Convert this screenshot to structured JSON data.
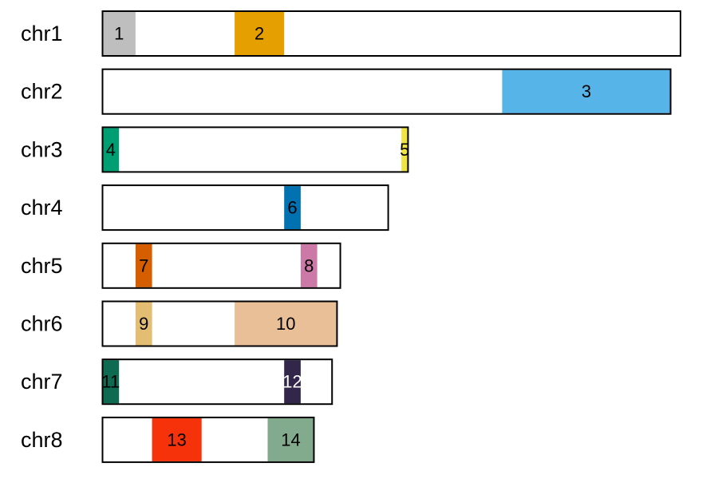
{
  "chart_data": {
    "type": "chromosome_map",
    "chromosomes": [
      {
        "name": "chr1",
        "length": 175
      },
      {
        "name": "chr2",
        "length": 172
      },
      {
        "name": "chr3",
        "length": 92.5
      },
      {
        "name": "chr4",
        "length": 86.5
      },
      {
        "name": "chr5",
        "length": 72
      },
      {
        "name": "chr6",
        "length": 71
      },
      {
        "name": "chr7",
        "length": 69.5
      },
      {
        "name": "chr8",
        "length": 64
      }
    ],
    "regions": [
      {
        "label": "1",
        "chrom": "chr1",
        "start": 0,
        "end": 10,
        "color": "#BEBEBE",
        "text_color": "#000000"
      },
      {
        "label": "2",
        "chrom": "chr1",
        "start": 40,
        "end": 55,
        "color": "#E69F00",
        "text_color": "#000000"
      },
      {
        "label": "3",
        "chrom": "chr2",
        "start": 121,
        "end": 172,
        "color": "#56B4E9",
        "text_color": "#000000"
      },
      {
        "label": "4",
        "chrom": "chr3",
        "start": 0,
        "end": 5,
        "color": "#009E73",
        "text_color": "#000000"
      },
      {
        "label": "5",
        "chrom": "chr3",
        "start": 90.5,
        "end": 92.5,
        "color": "#F0E442",
        "text_color": "#000000"
      },
      {
        "label": "6",
        "chrom": "chr4",
        "start": 55,
        "end": 60,
        "color": "#0072B2",
        "text_color": "#000000"
      },
      {
        "label": "7",
        "chrom": "chr5",
        "start": 10,
        "end": 15,
        "color": "#D55E00",
        "text_color": "#000000"
      },
      {
        "label": "8",
        "chrom": "chr5",
        "start": 60,
        "end": 65,
        "color": "#CC79A7",
        "text_color": "#000000"
      },
      {
        "label": "9",
        "chrom": "chr6",
        "start": 10,
        "end": 15,
        "color": "#E3BE72",
        "text_color": "#000000"
      },
      {
        "label": "10",
        "chrom": "chr6",
        "start": 40,
        "end": 71,
        "color": "#E8BF96",
        "text_color": "#000000"
      },
      {
        "label": "11",
        "chrom": "chr7",
        "start": 0,
        "end": 5,
        "color": "#0E6B51",
        "text_color": "#000000"
      },
      {
        "label": "12",
        "chrom": "chr7",
        "start": 55,
        "end": 60,
        "color": "#32264A",
        "text_color": "#FFFFFF"
      },
      {
        "label": "13",
        "chrom": "chr8",
        "start": 15,
        "end": 30,
        "color": "#F5320A",
        "text_color": "#000000"
      },
      {
        "label": "14",
        "chrom": "chr8",
        "start": 50,
        "end": 64,
        "color": "#82AA8C",
        "text_color": "#000000"
      }
    ]
  }
}
